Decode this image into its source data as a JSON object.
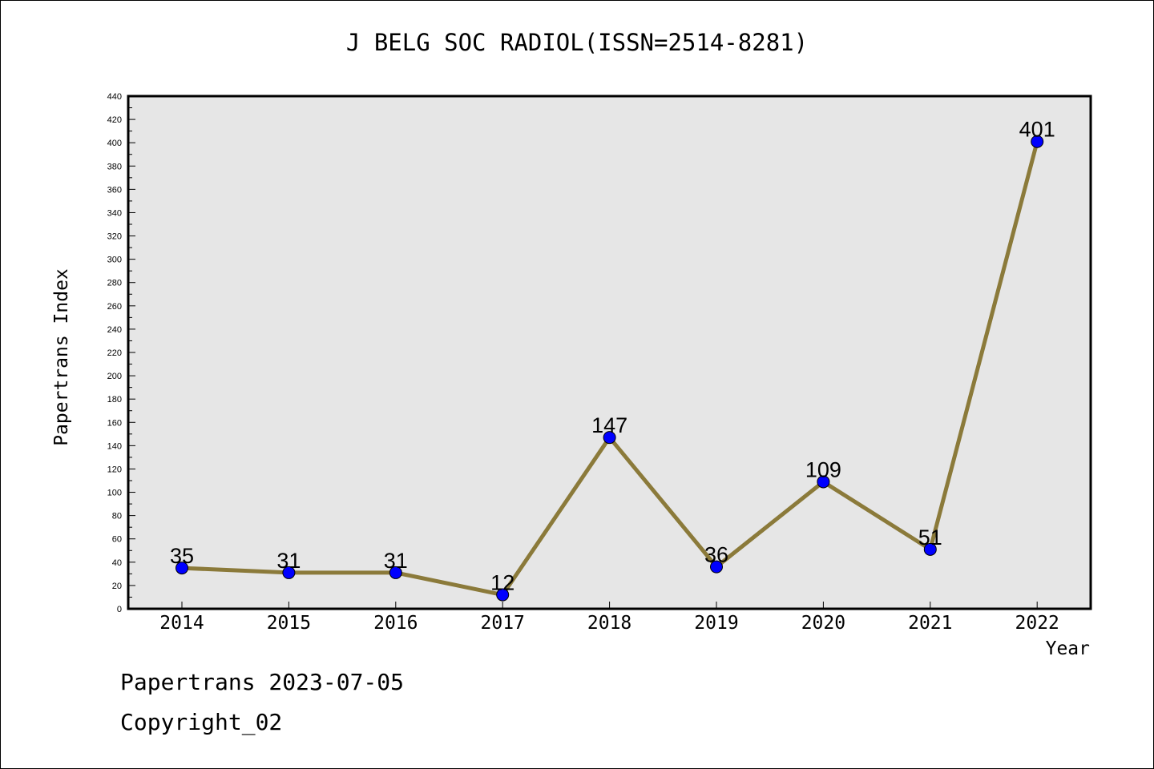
{
  "chart_data": {
    "type": "line",
    "title": "J BELG SOC RADIOL(ISSN=2514-8281)",
    "xlabel": "Year",
    "ylabel": "Papertrans Index",
    "categories": [
      "2014",
      "2015",
      "2016",
      "2017",
      "2018",
      "2019",
      "2020",
      "2021",
      "2022"
    ],
    "values": [
      35,
      31,
      31,
      12,
      147,
      36,
      109,
      51,
      401
    ],
    "data_labels": [
      "35",
      "31",
      "31",
      "12",
      "147",
      "36",
      "109",
      "51",
      "401"
    ],
    "ylim": [
      0,
      440
    ],
    "yticks": [
      0,
      20,
      40,
      60,
      80,
      100,
      120,
      140,
      160,
      180,
      200,
      220,
      240,
      260,
      280,
      300,
      320,
      340,
      360,
      380,
      400,
      420,
      440
    ],
    "grid": false,
    "colors": {
      "line": "#8b7a3a",
      "marker": "#0000ff",
      "plot_bg": "#e6e6e6"
    }
  },
  "footer": {
    "line1": "Papertrans 2023-07-05",
    "line2": "Copyright_02"
  }
}
